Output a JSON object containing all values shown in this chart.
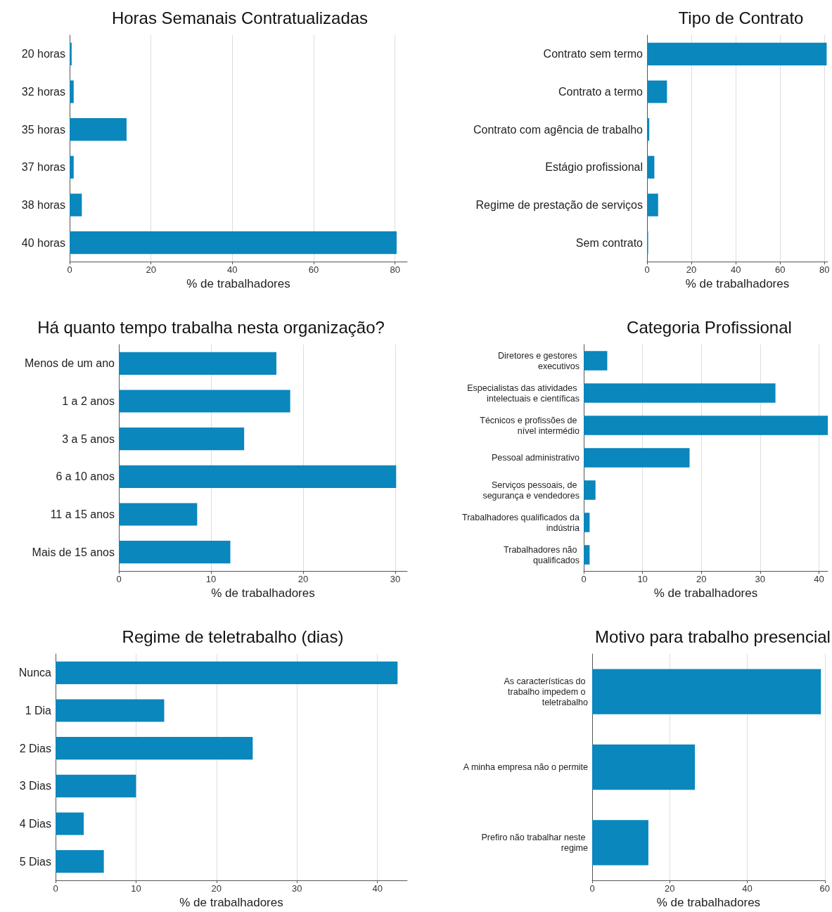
{
  "chart_data": [
    {
      "type": "bar",
      "orientation": "horizontal",
      "title": "Horas Semanais Contratualizadas",
      "xlabel": "% de trabalhadores",
      "categories": [
        "20 horas",
        "32 horas",
        "35 horas",
        "37 horas",
        "38 horas",
        "40 horas"
      ],
      "values": [
        0.5,
        1,
        14,
        1,
        3,
        80.4
      ],
      "color": "#0a87bc",
      "xlim": [
        0,
        83
      ],
      "xticks": [
        0,
        20,
        40,
        60,
        80
      ],
      "grid": "x"
    },
    {
      "type": "bar",
      "orientation": "horizontal",
      "title": "Tipo de Contrato",
      "xlabel": "% de trabalhadores",
      "categories": [
        "Contrato sem termo",
        "Contrato a termo",
        "Contrato com agência de trabalho",
        "Estágio profissional",
        "Regime de prestação de serviços",
        "Sem contrato"
      ],
      "values": [
        81,
        9,
        1,
        3.3,
        5,
        0.5
      ],
      "color": "#0a87bc",
      "xlim": [
        0,
        81.5
      ],
      "xticks": [
        0,
        20,
        40,
        60,
        80
      ],
      "grid": "x"
    },
    {
      "type": "bar",
      "orientation": "horizontal",
      "title": "Há quanto tempo trabalha nesta organização?",
      "xlabel": "% de trabalhadores",
      "categories": [
        "Menos de um ano",
        "1 a 2 anos",
        "3 a 5 anos",
        "6 a 10 anos",
        "11 a 15 anos",
        "Mais de 15 anos"
      ],
      "values": [
        17.1,
        18.6,
        13.6,
        30.1,
        8.5,
        12.1
      ],
      "color": "#0a87bc",
      "xlim": [
        0,
        31.3
      ],
      "xticks": [
        0,
        10,
        20,
        30
      ],
      "grid": "x"
    },
    {
      "type": "bar",
      "orientation": "horizontal",
      "title": "Categoria Profissional",
      "xlabel": "% de trabalhadores",
      "categories": [
        "Diretores e gestores executivos",
        "Especialistas das atividades intelectuais e científicas",
        "Técnicos e profissões de nível intermédio",
        "Pessoal administrativo",
        "Serviços pessoais, de segurança e vendedores",
        "Trabalhadores qualificados da indústria",
        "Trabalhadores não qualificados"
      ],
      "values": [
        4,
        32.6,
        41.5,
        18,
        2,
        1,
        1
      ],
      "color": "#0a87bc",
      "xlim": [
        0,
        41.5
      ],
      "xticks": [
        0,
        10,
        20,
        30,
        40
      ],
      "grid": "x"
    },
    {
      "type": "bar",
      "orientation": "horizontal",
      "title": "Regime de teletrabalho (dias)",
      "xlabel": "% de trabalhadores",
      "categories": [
        "Nunca",
        "1 Dia",
        "2 Dias",
        "3 Dias",
        "4 Dias",
        "5 Dias"
      ],
      "values": [
        42.5,
        13.5,
        24.5,
        10,
        3.5,
        6
      ],
      "color": "#0a87bc",
      "xlim": [
        0,
        43.7
      ],
      "xticks": [
        0,
        10,
        20,
        30,
        40
      ],
      "grid": "x"
    },
    {
      "type": "bar",
      "orientation": "horizontal",
      "title": "Motivo para trabalho presencial",
      "xlabel": "% de trabalhadores",
      "categories": [
        "As características do trabalho impedem o teletrabalho",
        "A minha empresa não o permite",
        "Prefiro não trabalhar neste regime"
      ],
      "values": [
        59,
        26.5,
        14.5
      ],
      "color": "#0a87bc",
      "xlim": [
        0,
        60
      ],
      "xticks": [
        0,
        20,
        40,
        60
      ],
      "grid": "x"
    }
  ]
}
